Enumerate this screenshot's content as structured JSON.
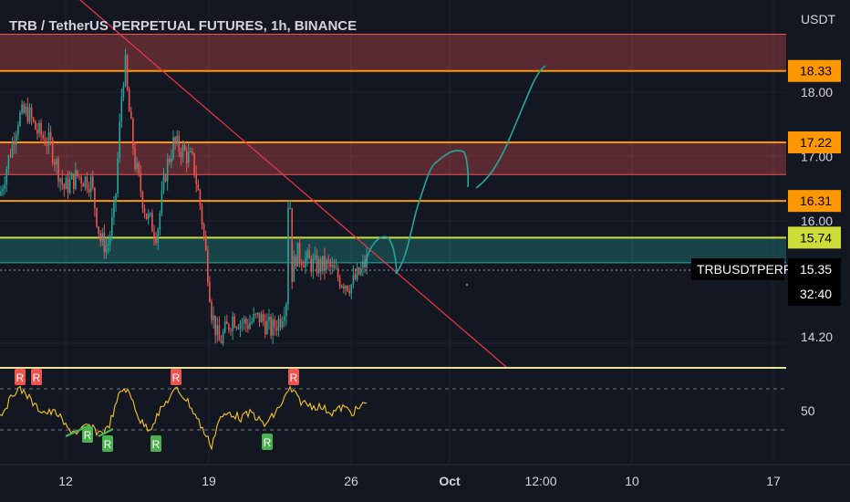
{
  "title": "TRB / TetherUS PERPETUAL FUTURES, 1h, BINANCE",
  "colors": {
    "background": "#131722",
    "up": "#26a69a",
    "down": "#ef5350",
    "resistance_zone": "rgba(239,83,80,0.32)",
    "support_zone": "rgba(38,166,154,0.32)",
    "orange_level": "#ff9800",
    "yellow_level": "#cddc39",
    "trendline": "#f23645",
    "projection": "#26a69a",
    "rsi": "#f7c325",
    "r_bear": "#ef5350",
    "r_bull": "#4caf50"
  },
  "chart_data": {
    "type": "candlestick",
    "symbol": "TRBUSDTPERP",
    "currency": "USDT",
    "last_price": 15.35,
    "countdown": "32:40",
    "y_ticks": [
      {
        "label": "18.00",
        "value": 18.0
      },
      {
        "label": "17.00",
        "value": 17.0
      },
      {
        "label": "16.00",
        "value": 16.0
      },
      {
        "label": "14.20",
        "value": 14.2
      }
    ],
    "x_ticks": [
      "12",
      "19",
      "26",
      "Oct",
      "12:00",
      "10",
      "17"
    ],
    "levels": [
      {
        "value": 18.33,
        "label": "18.33",
        "color": "#ff9800"
      },
      {
        "value": 17.22,
        "label": "17.22",
        "color": "#ff9800"
      },
      {
        "value": 16.31,
        "label": "16.31",
        "color": "#ff9800"
      },
      {
        "value": 15.74,
        "label": "15.74",
        "color": "#cddc39"
      }
    ],
    "zones": [
      {
        "kind": "resistance",
        "from": 18.33,
        "to": 18.9
      },
      {
        "kind": "resistance",
        "from": 16.72,
        "to": 17.22
      },
      {
        "kind": "support",
        "from": 15.35,
        "to": 15.74
      }
    ],
    "rsi": {
      "label": "50",
      "upper_band": 70,
      "lower_band": 30,
      "signals": [
        "R",
        "R",
        "R",
        "R",
        "R",
        "R",
        "R",
        "R",
        "R"
      ]
    }
  }
}
